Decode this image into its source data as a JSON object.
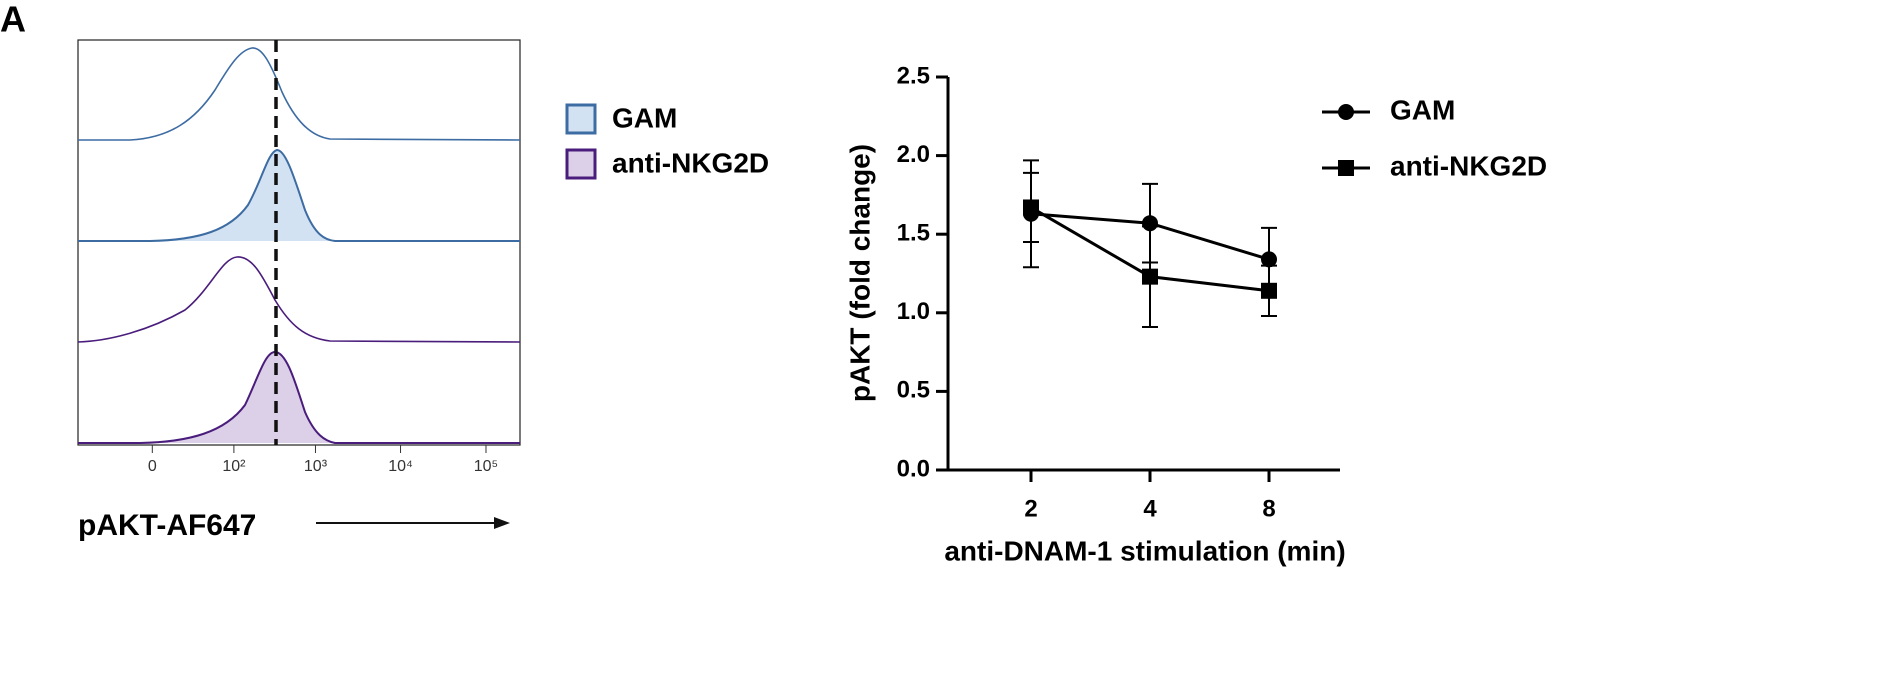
{
  "panel_label": "A",
  "chart_data": [
    {
      "type": "flow-histogram",
      "xlabel": "pAKT-AF647",
      "scale": "biexponential",
      "xlim": [
        -80,
        250000
      ],
      "xticks": [
        0,
        {
          "value": 100,
          "label": "10²"
        },
        {
          "value": 1000,
          "label": "10³"
        },
        {
          "value": 10000,
          "label": "10⁴"
        },
        {
          "value": 100000,
          "label": "10⁵"
        }
      ],
      "series": [
        {
          "name": "GAM",
          "color": "#d3e2f2",
          "edgecolor": "#3d6ca3"
        },
        {
          "name": "anti-NKG2D",
          "color": "#dccfe8",
          "edgecolor": "#4a1d7c"
        }
      ]
    },
    {
      "type": "line",
      "xlabel": "anti-DNAM-1 stimulation (min)",
      "ylabel": "pAKT (fold change)",
      "categories": [
        "2",
        "4",
        "8"
      ],
      "ylim": [
        0,
        2.5
      ],
      "yticks": [
        {
          "value": 0,
          "label": "0.0"
        },
        0.5,
        {
          "value": 1,
          "label": "1.0"
        },
        1.5,
        {
          "value": 2,
          "label": "2.0"
        },
        2.5
      ],
      "legend": "upper right",
      "series": [
        {
          "name": "GAM",
          "color": "#000000",
          "marker": "circle",
          "values": [
            1.63,
            1.57,
            1.34
          ],
          "errors": [
            0.34,
            0.25,
            0.2
          ]
        },
        {
          "name": "anti-NKG2D",
          "color": "#000000",
          "marker": "square",
          "values": [
            1.67,
            1.23,
            1.14
          ],
          "errors": [
            0.22,
            0.32,
            0.16
          ]
        }
      ]
    }
  ]
}
